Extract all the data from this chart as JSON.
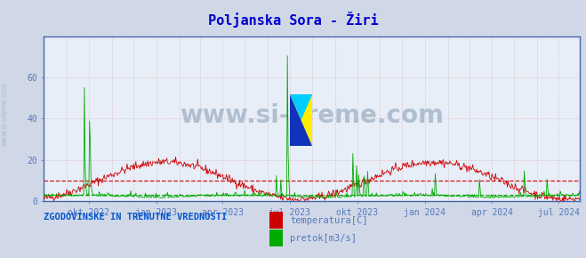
{
  "title": "Poljanska Sora - Žiri",
  "title_color": "#0000cc",
  "bg_color": "#d0d8e8",
  "plot_bg_color": "#e8eef8",
  "temp_color": "#cc0000",
  "flow_color": "#00aa00",
  "temp_avg_line": 10.0,
  "flow_avg_line": 3.0,
  "ymin": 0,
  "ymax": 80,
  "yticks": [
    0,
    20,
    40,
    60
  ],
  "watermark_text": "www.si-vreme.com",
  "watermark_color": "#b0bfd0",
  "watermark_fontsize": 20,
  "bottom_title": "ZGODOVINSKE IN TRENUTNE VREDNOSTI",
  "bottom_title_color": "#0055cc",
  "legend_items": [
    "temperatura[C]",
    "pretok[m3/s]"
  ],
  "legend_colors": [
    "#cc0000",
    "#00aa00"
  ],
  "axis_color": "#4466aa",
  "tick_color": "#5577bb",
  "left_text": "www.si-vreme.com",
  "left_text_color": "#aabbcc"
}
